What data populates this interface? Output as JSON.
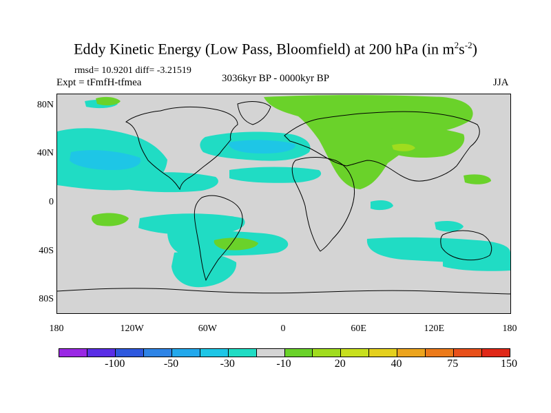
{
  "title": {
    "main": "Eddy Kinetic Energy (Low Pass, Bloomfield) at 200 hPa (in m",
    "sup1": "2",
    "mid": "s",
    "sup2": "-2",
    "end": ")"
  },
  "stats": "rmsd= 10.9201 diff= -3.21519",
  "expt": "Expt = tFmfH-tfmea",
  "period": "3036kyr BP - 0000kyr BP",
  "season": "JJA",
  "map": {
    "projection": "cylindrical-equidistant",
    "lon_range": [
      -180,
      180
    ],
    "lat_range": [
      -90,
      90
    ],
    "y_ticks": [
      {
        "lat": 80,
        "label": "80N"
      },
      {
        "lat": 40,
        "label": "40N"
      },
      {
        "lat": 0,
        "label": "0"
      },
      {
        "lat": -40,
        "label": "40S"
      },
      {
        "lat": -80,
        "label": "80S"
      }
    ],
    "x_ticks": [
      {
        "lon": -180,
        "label": "180"
      },
      {
        "lon": -120,
        "label": "120W"
      },
      {
        "lon": -60,
        "label": "60W"
      },
      {
        "lon": 0,
        "label": "0"
      },
      {
        "lon": 60,
        "label": "60E"
      },
      {
        "lon": 120,
        "label": "120E"
      },
      {
        "lon": 180,
        "label": "180"
      }
    ],
    "background_color": "#d4d4d4",
    "coastline_color": "#000000"
  },
  "colorbar": {
    "colors": [
      "#9a28e4",
      "#5a2ee6",
      "#2e58de",
      "#2e84e6",
      "#22a8ec",
      "#1ec6e6",
      "#20dcc4",
      "#d4d4d4",
      "#6ad22a",
      "#a0dc1e",
      "#c8e01e",
      "#e4d01e",
      "#eca41e",
      "#ec7a1a",
      "#e8501a",
      "#e02818"
    ],
    "labels": [
      {
        "boundary": 2,
        "text": "-100"
      },
      {
        "boundary": 4,
        "text": "-50"
      },
      {
        "boundary": 6,
        "text": "-30"
      },
      {
        "boundary": 8,
        "text": "-10"
      },
      {
        "boundary": 10,
        "text": "20"
      },
      {
        "boundary": 12,
        "text": "40"
      },
      {
        "boundary": 14,
        "text": "75"
      },
      {
        "boundary": 16,
        "text": "150"
      }
    ]
  }
}
